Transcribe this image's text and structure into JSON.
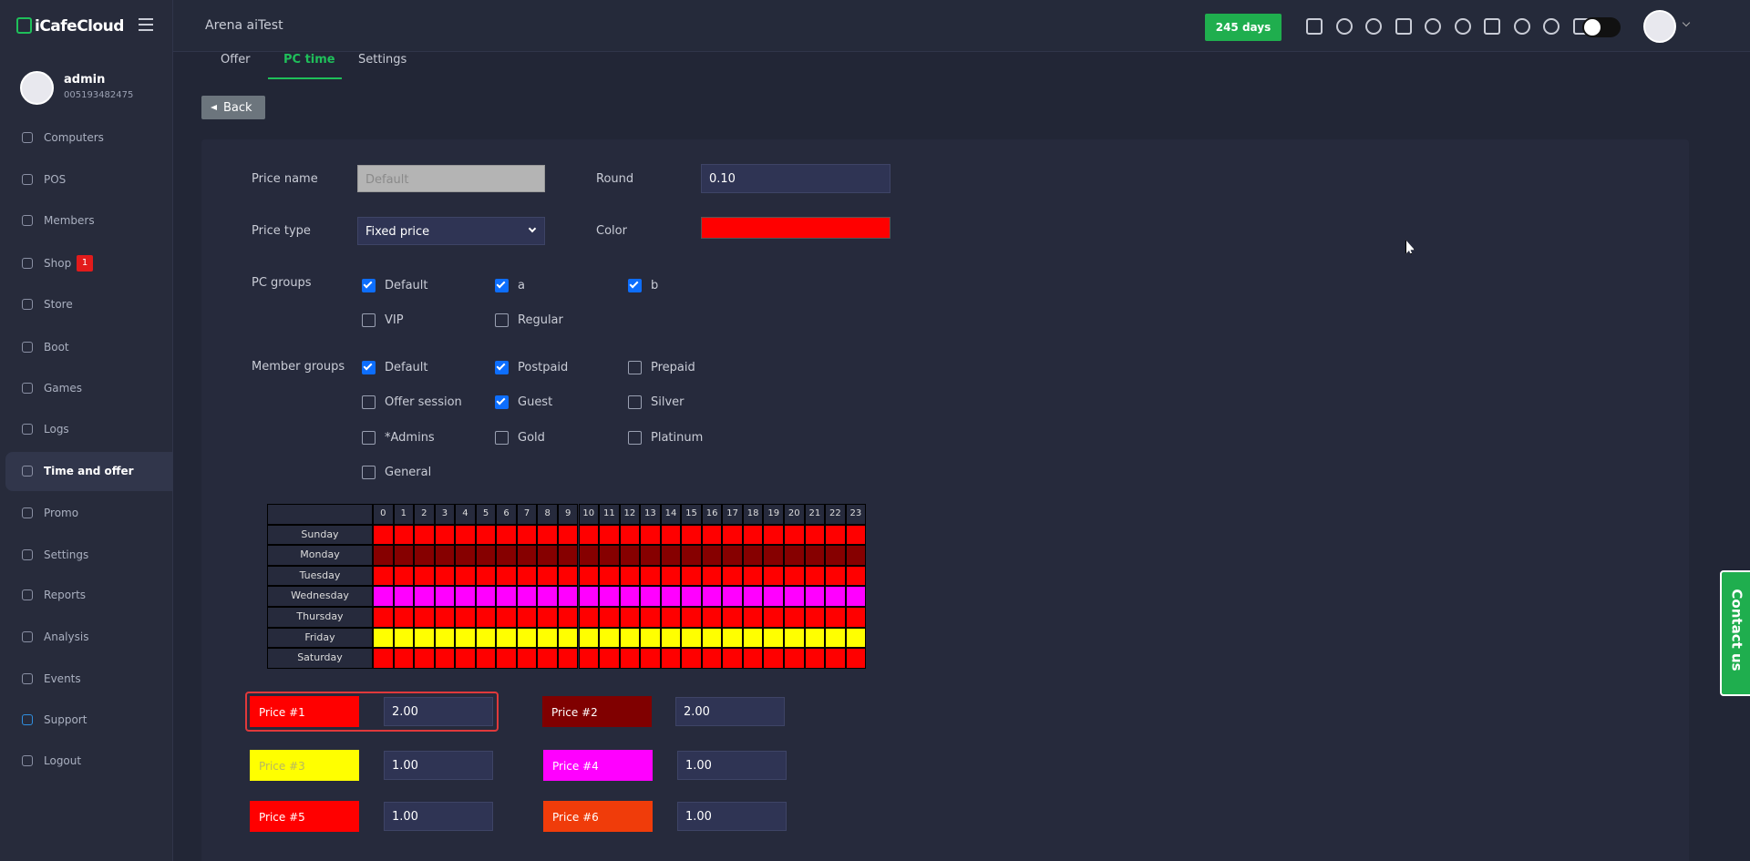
{
  "sidebar": {
    "logo": "iCafeCloud",
    "user": {
      "name": "admin",
      "id": "005193482475"
    },
    "menu": [
      {
        "label": "Computers"
      },
      {
        "label": "POS"
      },
      {
        "label": "Members"
      },
      {
        "label": "Shop",
        "badge": "1"
      },
      {
        "label": "Store"
      },
      {
        "label": "Boot"
      },
      {
        "label": "Games"
      },
      {
        "label": "Logs"
      },
      {
        "label": "Time and offer",
        "active": true
      },
      {
        "label": "Promo"
      },
      {
        "label": "Settings"
      },
      {
        "label": "Reports"
      },
      {
        "label": "Analysis"
      },
      {
        "label": "Events"
      },
      {
        "label": "Support"
      },
      {
        "label": "Logout"
      }
    ]
  },
  "header": {
    "title": "Arena aiTest",
    "license": "245 days"
  },
  "tabs": [
    {
      "label": "Offer"
    },
    {
      "label": "PC time",
      "active": true
    },
    {
      "label": "Settings"
    }
  ],
  "back": "Back",
  "form": {
    "price_name": {
      "label": "Price name",
      "placeholder": "Default"
    },
    "round": {
      "label": "Round",
      "value": "0.10"
    },
    "price_type": {
      "label": "Price type",
      "value": "Fixed price"
    },
    "color": {
      "label": "Color",
      "value": "#ff0000"
    },
    "pc_groups": {
      "label": "PC groups",
      "options": [
        {
          "name": "Default",
          "checked": true
        },
        {
          "name": "a",
          "checked": true
        },
        {
          "name": "b",
          "checked": true
        },
        {
          "name": "VIP",
          "checked": false
        },
        {
          "name": "Regular",
          "checked": false
        }
      ]
    },
    "member_groups": {
      "label": "Member groups",
      "options": [
        {
          "name": "Default",
          "checked": true
        },
        {
          "name": "Postpaid",
          "checked": true
        },
        {
          "name": "Prepaid",
          "checked": false
        },
        {
          "name": "Offer session",
          "checked": false
        },
        {
          "name": "Guest",
          "checked": true
        },
        {
          "name": "Silver",
          "checked": false
        },
        {
          "name": "*Admins",
          "checked": false
        },
        {
          "name": "Gold",
          "checked": false
        },
        {
          "name": "Platinum",
          "checked": false
        },
        {
          "name": "General",
          "checked": false
        }
      ]
    }
  },
  "schedule": {
    "hours": [
      0,
      1,
      2,
      3,
      4,
      5,
      6,
      7,
      8,
      9,
      10,
      11,
      12,
      13,
      14,
      15,
      16,
      17,
      18,
      19,
      20,
      21,
      22,
      23
    ],
    "days": [
      {
        "name": "Sunday",
        "color": "#ff0000"
      },
      {
        "name": "Monday",
        "color": "#860000"
      },
      {
        "name": "Tuesday",
        "color": "#ff0000"
      },
      {
        "name": "Wednesday",
        "color": "#ff00ff"
      },
      {
        "name": "Thursday",
        "color": "#ff0000"
      },
      {
        "name": "Friday",
        "color": "#ffff00"
      },
      {
        "name": "Saturday",
        "color": "#ff0000"
      }
    ]
  },
  "prices": [
    {
      "name": "Price #1",
      "value": "2.00",
      "color": "#ff0000",
      "selected": true
    },
    {
      "name": "Price #2",
      "value": "2.00",
      "color": "#800000"
    },
    {
      "name": "Price #3",
      "value": "1.00",
      "color": "#ffff00"
    },
    {
      "name": "Price #4",
      "value": "1.00",
      "color": "#ff00ff"
    },
    {
      "name": "Price #5",
      "value": "1.00",
      "color": "#ff0000"
    },
    {
      "name": "Price #6",
      "value": "1.00",
      "color": "#f03c0a"
    }
  ],
  "contact": "Contact us"
}
